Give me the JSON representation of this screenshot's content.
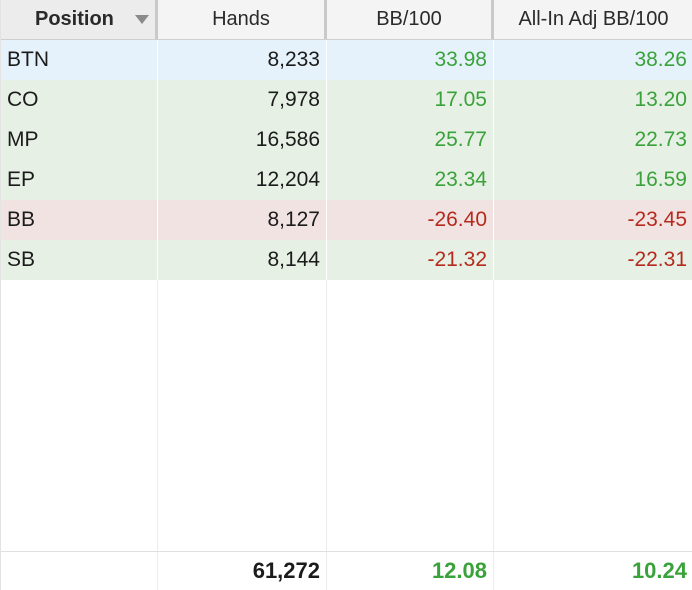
{
  "table": {
    "columns": [
      {
        "label": "Position",
        "sorted": true
      },
      {
        "label": "Hands"
      },
      {
        "label": "BB/100"
      },
      {
        "label": "All-In Adj BB/100"
      }
    ],
    "rows": [
      {
        "position": "BTN",
        "hands": "8,233",
        "bb100": "33.98",
        "allin_adj_bb100": "38.26",
        "row_color": "blue",
        "bb100_sign": "pos",
        "adj_sign": "pos"
      },
      {
        "position": "CO",
        "hands": "7,978",
        "bb100": "17.05",
        "allin_adj_bb100": "13.20",
        "row_color": "green",
        "bb100_sign": "pos",
        "adj_sign": "pos"
      },
      {
        "position": "MP",
        "hands": "16,586",
        "bb100": "25.77",
        "allin_adj_bb100": "22.73",
        "row_color": "green",
        "bb100_sign": "pos",
        "adj_sign": "pos"
      },
      {
        "position": "EP",
        "hands": "12,204",
        "bb100": "23.34",
        "allin_adj_bb100": "16.59",
        "row_color": "green",
        "bb100_sign": "pos",
        "adj_sign": "pos"
      },
      {
        "position": "BB",
        "hands": "8,127",
        "bb100": "-26.40",
        "allin_adj_bb100": "-23.45",
        "row_color": "red",
        "bb100_sign": "neg",
        "adj_sign": "neg"
      },
      {
        "position": "SB",
        "hands": "8,144",
        "bb100": "-21.32",
        "allin_adj_bb100": "-22.31",
        "row_color": "green",
        "bb100_sign": "neg",
        "adj_sign": "neg"
      }
    ],
    "totals": {
      "position": "",
      "hands": "61,272",
      "bb100": "12.08",
      "allin_adj_bb100": "10.24"
    }
  },
  "colors": {
    "positive": "#3aa23a",
    "negative": "#b52a1e",
    "row_blue": "#e6f2fb",
    "row_green": "#e6f0e4",
    "row_red": "#f2e3e3",
    "header_bg": "#f4f4f4"
  }
}
